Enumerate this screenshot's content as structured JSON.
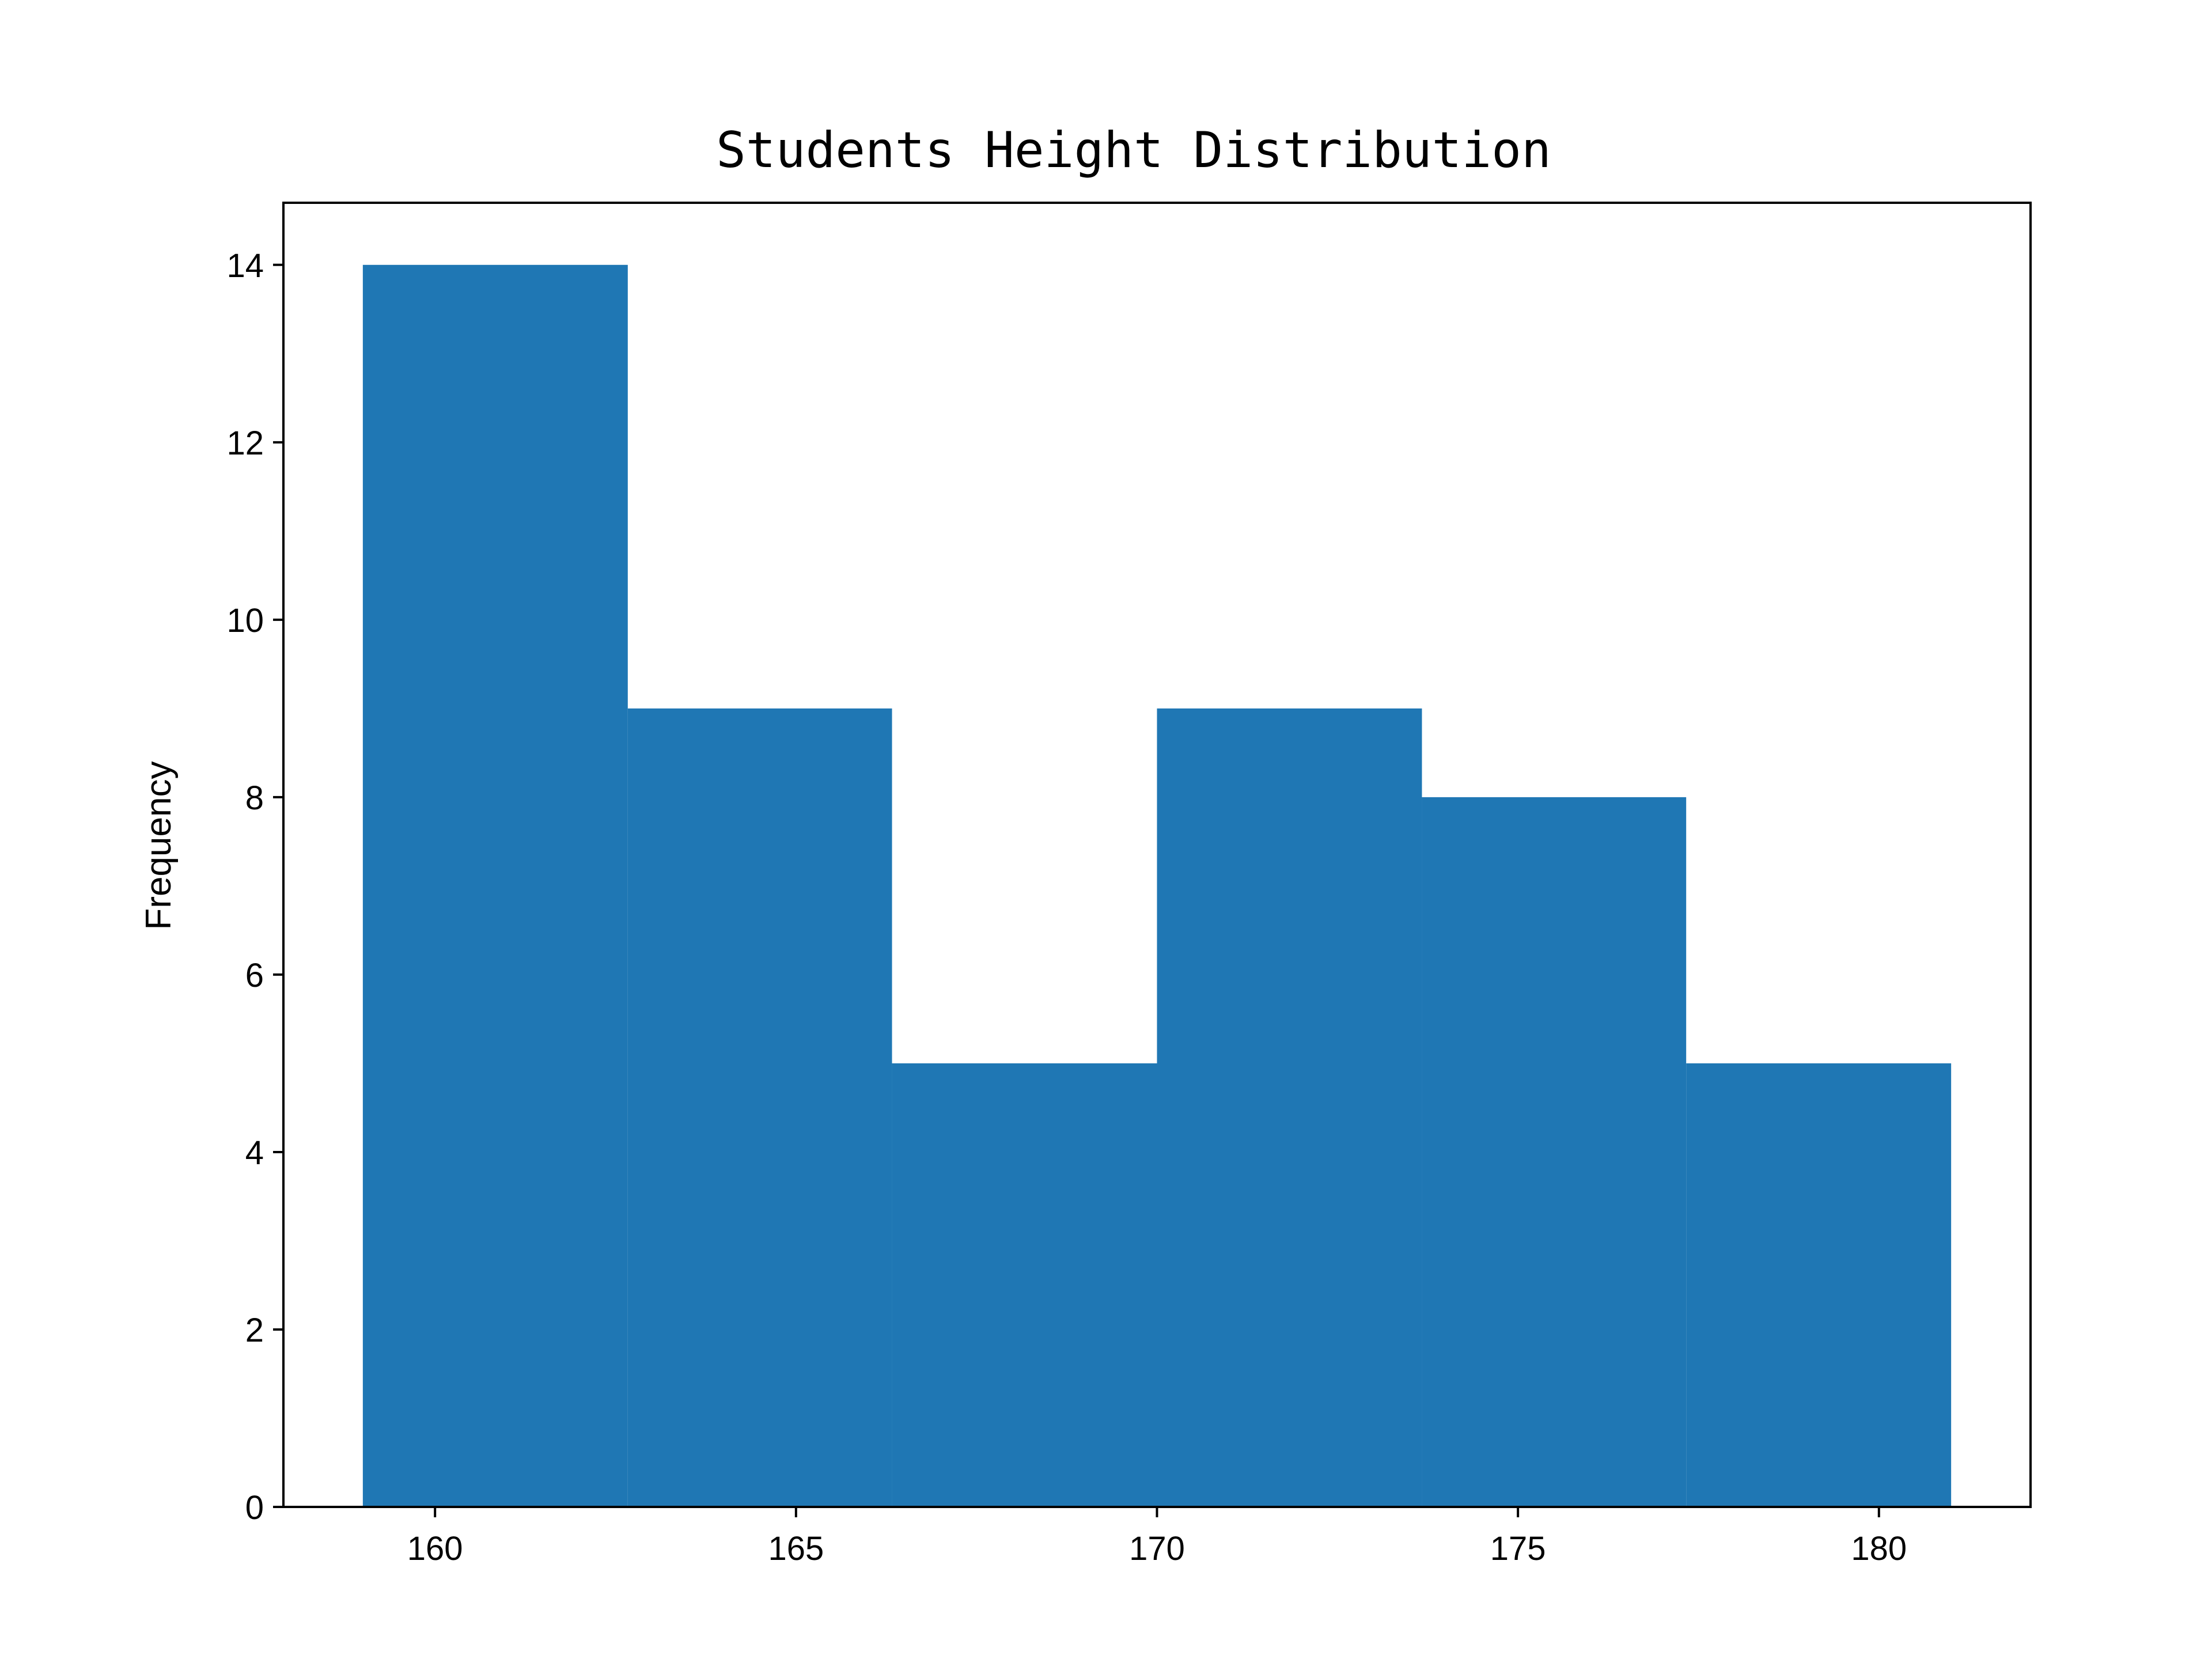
{
  "chart_data": {
    "type": "histogram",
    "title": "Students Height Distribution",
    "xlabel": "",
    "ylabel": "Frequency",
    "bins": [
      {
        "start": 159.0,
        "end": 162.67,
        "count": 14
      },
      {
        "start": 162.67,
        "end": 166.33,
        "count": 9
      },
      {
        "start": 166.33,
        "end": 170.0,
        "count": 5
      },
      {
        "start": 170.0,
        "end": 173.67,
        "count": 9
      },
      {
        "start": 173.67,
        "end": 177.33,
        "count": 8
      },
      {
        "start": 177.33,
        "end": 181.0,
        "count": 5
      }
    ],
    "xlim": [
      157.9,
      182.1
    ],
    "ylim": [
      0,
      14.7
    ],
    "xticks": [
      160,
      165,
      170,
      175,
      180
    ],
    "yticks": [
      0,
      2,
      4,
      6,
      8,
      10,
      12,
      14
    ],
    "bar_color": "#1f77b4",
    "grid": false,
    "legend": "none"
  }
}
